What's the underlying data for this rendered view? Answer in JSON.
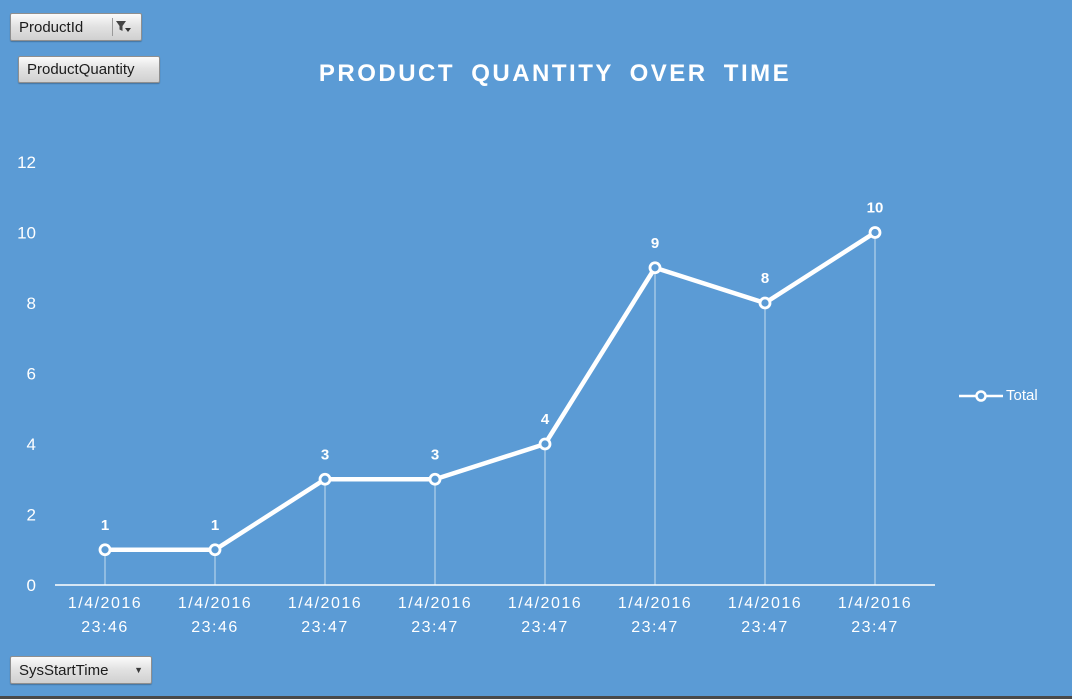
{
  "page": {
    "background": "#5B9BD5"
  },
  "field_buttons": {
    "product_id": {
      "label": "ProductId",
      "icon": "filter-dropdown-icon"
    },
    "product_quantity": {
      "label": "ProductQuantity"
    },
    "sys_start_time": {
      "label": "SysStartTime",
      "icon": "dropdown-caret-icon"
    }
  },
  "chart_data": {
    "type": "line",
    "title": "PRODUCT QUANTITY OVER TIME",
    "categories": [
      "1/4/2016 23:46",
      "1/4/2016 23:46",
      "1/4/2016 23:47",
      "1/4/2016 23:47",
      "1/4/2016 23:47",
      "1/4/2016 23:47",
      "1/4/2016 23:47",
      "1/4/2016 23:47"
    ],
    "series": [
      {
        "name": "Total",
        "values": [
          1,
          1,
          3,
          3,
          4,
          9,
          8,
          10
        ]
      }
    ],
    "xlabel": "",
    "ylabel": "",
    "ylim": [
      0,
      12
    ],
    "ytick_step": 2,
    "grid": false,
    "legend_position": "right",
    "line_color": "#ffffff",
    "data_labels": true,
    "drop_lines": true
  }
}
